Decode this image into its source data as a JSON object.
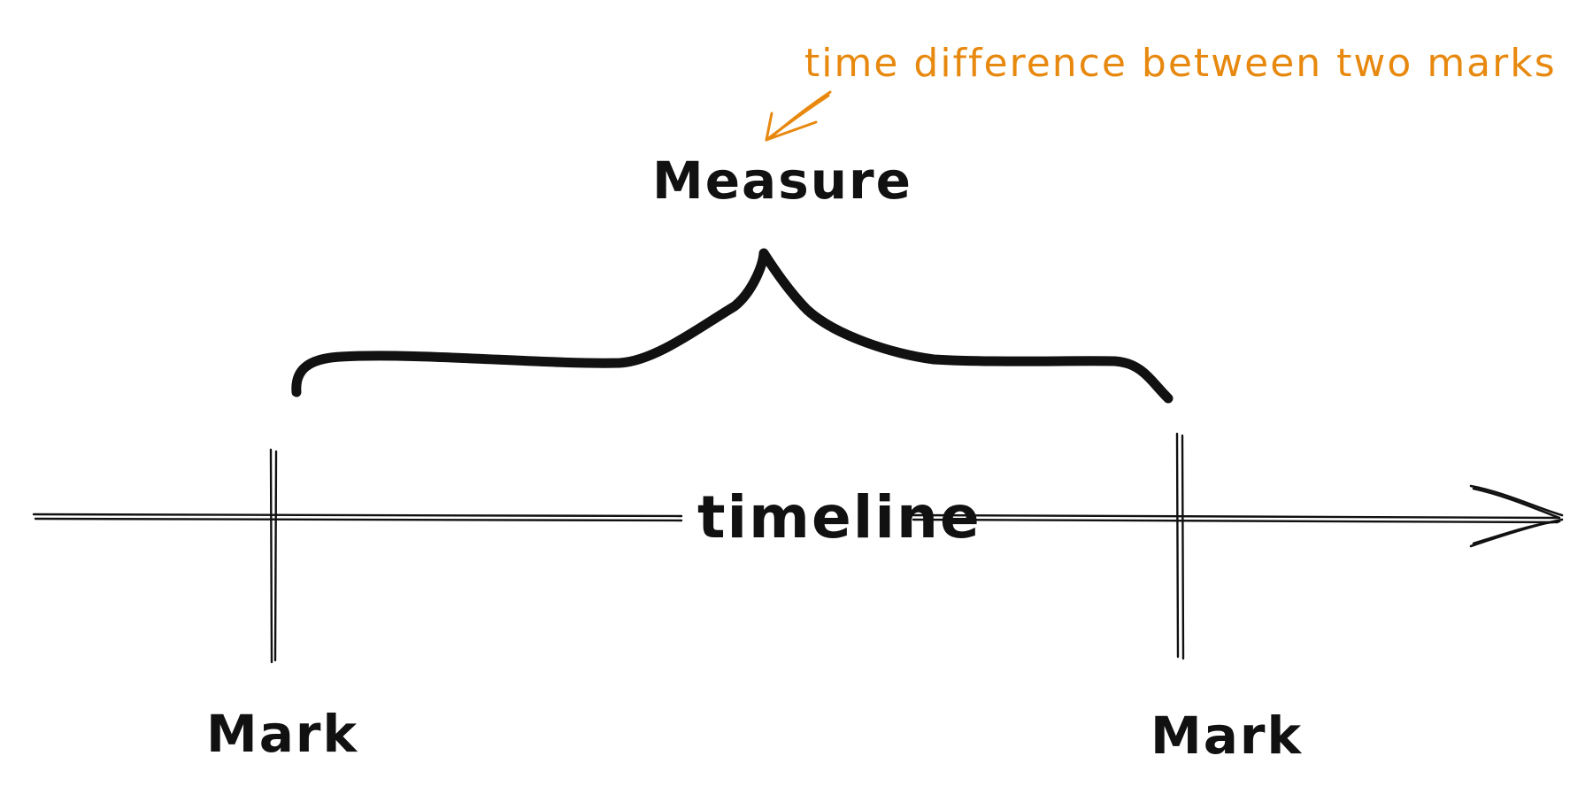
{
  "diagram": {
    "annotation": "time difference between two marks",
    "measure_label": "Measure",
    "timeline_label": "timeline",
    "marks": [
      {
        "label": "Mark"
      },
      {
        "label": "Mark"
      }
    ],
    "colors": {
      "ink": "#111111",
      "annotation": "#e8890f",
      "background": "#ffffff"
    }
  }
}
